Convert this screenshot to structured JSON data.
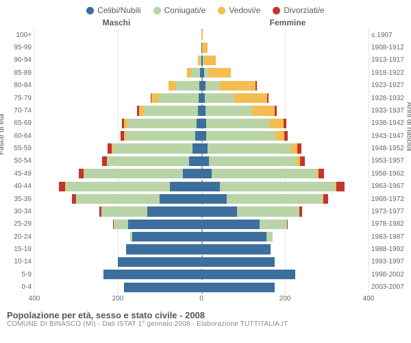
{
  "colors": {
    "celibi": "#3d6f9e",
    "coniugati": "#b9d4a7",
    "vedovi": "#f4bd4f",
    "divorziati": "#c1352c",
    "grid": "#e5e5e5",
    "text": "#5b5b5b",
    "bg": "#ffffff"
  },
  "legend": [
    {
      "key": "celibi",
      "label": "Celibi/Nubili"
    },
    {
      "key": "coniugati",
      "label": "Coniugati/e"
    },
    {
      "key": "vedovi",
      "label": "Vedovi/e"
    },
    {
      "key": "divorziati",
      "label": "Divorziati/e"
    }
  ],
  "headers": {
    "left": "Maschi",
    "right": "Femmine"
  },
  "axis_titles": {
    "left": "Fasce di età",
    "right": "Anni di nascita"
  },
  "x_axis": {
    "max": 400,
    "ticks": [
      400,
      200,
      0,
      200,
      400
    ]
  },
  "footer": {
    "title": "Popolazione per età, sesso e stato civile - 2008",
    "sub": "COMUNE DI BINASCO (MI) - Dati ISTAT 1° gennaio 2008 - Elaborazione TUTTITALIA.IT"
  },
  "rows": [
    {
      "age": "100+",
      "birth": "≤ 1907",
      "m": {
        "c": 0,
        "co": 0,
        "v": 0,
        "d": 0
      },
      "f": {
        "c": 0,
        "co": 0,
        "v": 3,
        "d": 0
      }
    },
    {
      "age": "95-99",
      "birth": "1908-1912",
      "m": {
        "c": 0,
        "co": 0,
        "v": 0,
        "d": 0
      },
      "f": {
        "c": 2,
        "co": 0,
        "v": 12,
        "d": 0
      }
    },
    {
      "age": "90-94",
      "birth": "1913-1917",
      "m": {
        "c": 0,
        "co": 3,
        "v": 5,
        "d": 0
      },
      "f": {
        "c": 4,
        "co": 2,
        "v": 28,
        "d": 0
      }
    },
    {
      "age": "85-89",
      "birth": "1918-1922",
      "m": {
        "c": 3,
        "co": 22,
        "v": 10,
        "d": 0
      },
      "f": {
        "c": 6,
        "co": 10,
        "v": 55,
        "d": 0
      }
    },
    {
      "age": "80-84",
      "birth": "1923-1927",
      "m": {
        "c": 5,
        "co": 55,
        "v": 18,
        "d": 0
      },
      "f": {
        "c": 10,
        "co": 35,
        "v": 85,
        "d": 2
      }
    },
    {
      "age": "75-79",
      "birth": "1928-1932",
      "m": {
        "c": 6,
        "co": 95,
        "v": 18,
        "d": 2
      },
      "f": {
        "c": 8,
        "co": 70,
        "v": 80,
        "d": 3
      }
    },
    {
      "age": "70-74",
      "birth": "1933-1937",
      "m": {
        "c": 8,
        "co": 130,
        "v": 12,
        "d": 4
      },
      "f": {
        "c": 10,
        "co": 110,
        "v": 55,
        "d": 6
      }
    },
    {
      "age": "65-69",
      "birth": "1938-1942",
      "m": {
        "c": 12,
        "co": 165,
        "v": 8,
        "d": 6
      },
      "f": {
        "c": 12,
        "co": 150,
        "v": 35,
        "d": 6
      }
    },
    {
      "age": "60-64",
      "birth": "1943-1947",
      "m": {
        "c": 15,
        "co": 165,
        "v": 5,
        "d": 8
      },
      "f": {
        "c": 12,
        "co": 165,
        "v": 22,
        "d": 8
      }
    },
    {
      "age": "55-59",
      "birth": "1948-1952",
      "m": {
        "c": 22,
        "co": 190,
        "v": 3,
        "d": 10
      },
      "f": {
        "c": 15,
        "co": 200,
        "v": 15,
        "d": 10
      }
    },
    {
      "age": "50-54",
      "birth": "1953-1957",
      "m": {
        "c": 30,
        "co": 195,
        "v": 2,
        "d": 10
      },
      "f": {
        "c": 18,
        "co": 210,
        "v": 8,
        "d": 12
      }
    },
    {
      "age": "45-49",
      "birth": "1958-1962",
      "m": {
        "c": 45,
        "co": 235,
        "v": 2,
        "d": 12
      },
      "f": {
        "c": 25,
        "co": 250,
        "v": 5,
        "d": 14
      }
    },
    {
      "age": "40-44",
      "birth": "1963-1967",
      "m": {
        "c": 75,
        "co": 250,
        "v": 1,
        "d": 15
      },
      "f": {
        "c": 45,
        "co": 275,
        "v": 3,
        "d": 20
      }
    },
    {
      "age": "35-39",
      "birth": "1968-1972",
      "m": {
        "c": 100,
        "co": 200,
        "v": 0,
        "d": 10
      },
      "f": {
        "c": 60,
        "co": 230,
        "v": 2,
        "d": 12
      }
    },
    {
      "age": "30-34",
      "birth": "1973-1977",
      "m": {
        "c": 130,
        "co": 110,
        "v": 0,
        "d": 5
      },
      "f": {
        "c": 85,
        "co": 150,
        "v": 0,
        "d": 6
      }
    },
    {
      "age": "25-29",
      "birth": "1978-1982",
      "m": {
        "c": 175,
        "co": 35,
        "v": 0,
        "d": 2
      },
      "f": {
        "c": 140,
        "co": 65,
        "v": 0,
        "d": 2
      }
    },
    {
      "age": "20-24",
      "birth": "1983-1987",
      "m": {
        "c": 165,
        "co": 5,
        "v": 0,
        "d": 0
      },
      "f": {
        "c": 155,
        "co": 15,
        "v": 0,
        "d": 0
      }
    },
    {
      "age": "15-19",
      "birth": "1988-1992",
      "m": {
        "c": 180,
        "co": 0,
        "v": 0,
        "d": 0
      },
      "f": {
        "c": 165,
        "co": 0,
        "v": 0,
        "d": 0
      }
    },
    {
      "age": "10-14",
      "birth": "1993-1997",
      "m": {
        "c": 200,
        "co": 0,
        "v": 0,
        "d": 0
      },
      "f": {
        "c": 175,
        "co": 0,
        "v": 0,
        "d": 0
      }
    },
    {
      "age": "5-9",
      "birth": "1998-2002",
      "m": {
        "c": 235,
        "co": 0,
        "v": 0,
        "d": 0
      },
      "f": {
        "c": 225,
        "co": 0,
        "v": 0,
        "d": 0
      }
    },
    {
      "age": "0-4",
      "birth": "2003-2007",
      "m": {
        "c": 185,
        "co": 0,
        "v": 0,
        "d": 0
      },
      "f": {
        "c": 175,
        "co": 0,
        "v": 0,
        "d": 0
      }
    }
  ]
}
